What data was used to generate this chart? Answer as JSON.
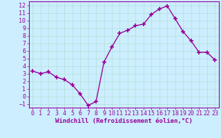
{
  "x": [
    0,
    1,
    2,
    3,
    4,
    5,
    6,
    7,
    8,
    9,
    10,
    11,
    12,
    13,
    14,
    15,
    16,
    17,
    18,
    19,
    20,
    21,
    22,
    23
  ],
  "y": [
    3.3,
    3.0,
    3.2,
    2.5,
    2.2,
    1.5,
    0.3,
    -1.2,
    -0.7,
    4.5,
    6.5,
    8.3,
    8.7,
    9.3,
    9.5,
    10.8,
    11.5,
    11.9,
    10.2,
    8.5,
    7.3,
    5.8,
    5.8,
    4.8
  ],
  "line_color": "#990099",
  "marker": "+",
  "markersize": 4,
  "markeredgewidth": 1.2,
  "linewidth": 1.0,
  "bg_color": "#cceeff",
  "grid_color": "#aaddcc",
  "xlabel": "Windchill (Refroidissement éolien,°C)",
  "xlabel_color": "#990099",
  "xlabel_fontsize": 6.5,
  "tick_color": "#990099",
  "tick_fontsize": 6,
  "xlim": [
    -0.5,
    23.5
  ],
  "ylim": [
    -1.5,
    12.5
  ],
  "yticks": [
    -1,
    0,
    1,
    2,
    3,
    4,
    5,
    6,
    7,
    8,
    9,
    10,
    11,
    12
  ],
  "xticks": [
    0,
    1,
    2,
    3,
    4,
    5,
    6,
    7,
    8,
    9,
    10,
    11,
    12,
    13,
    14,
    15,
    16,
    17,
    18,
    19,
    20,
    21,
    22,
    23
  ]
}
